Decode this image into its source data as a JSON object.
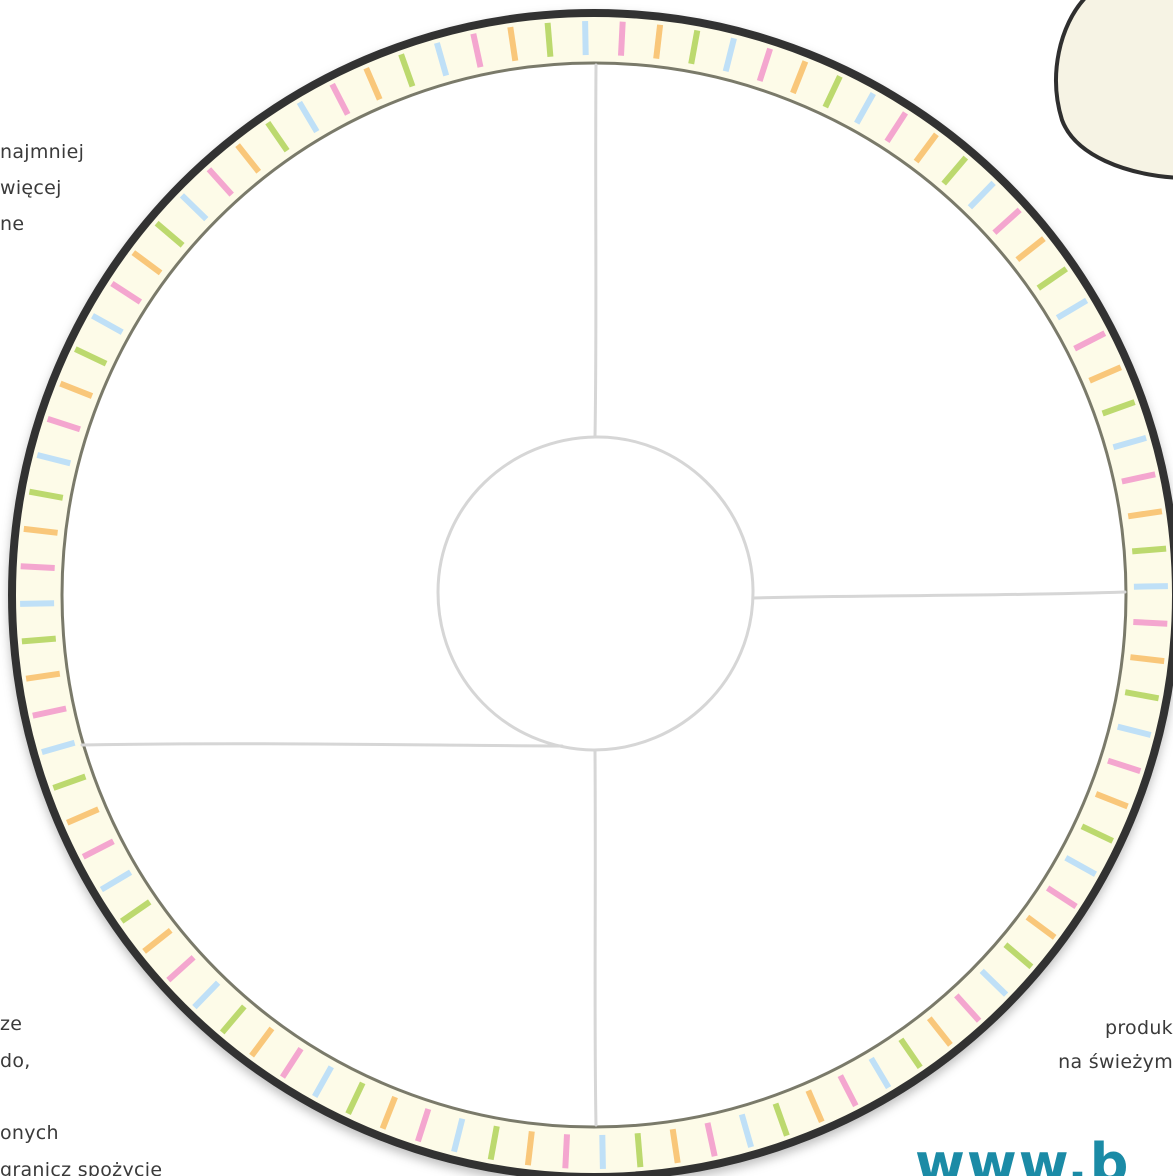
{
  "fragments": {
    "top_left": [
      "najmniej",
      "więcej",
      "ne"
    ],
    "bottom_left": [
      "ze",
      "do,",
      "onych",
      "granicz spożycie"
    ],
    "bottom_right": [
      "produk",
      "na świeżym"
    ]
  },
  "brand": {
    "text": "www.b"
  },
  "colors": {
    "stripe_colors": [
      "#f4a6cf",
      "#f9c77a",
      "#bcd96e",
      "#bfe0f7"
    ],
    "rim_fill": "#fdfbe8",
    "rim_border": "#3a3a3a",
    "divider": "#d6d6d6",
    "blob_fill": "#f6f3e4",
    "brand_color": "#1b8ba6"
  },
  "icons": {
    "plate": "plate-icon",
    "blob": "decorative-blob"
  }
}
